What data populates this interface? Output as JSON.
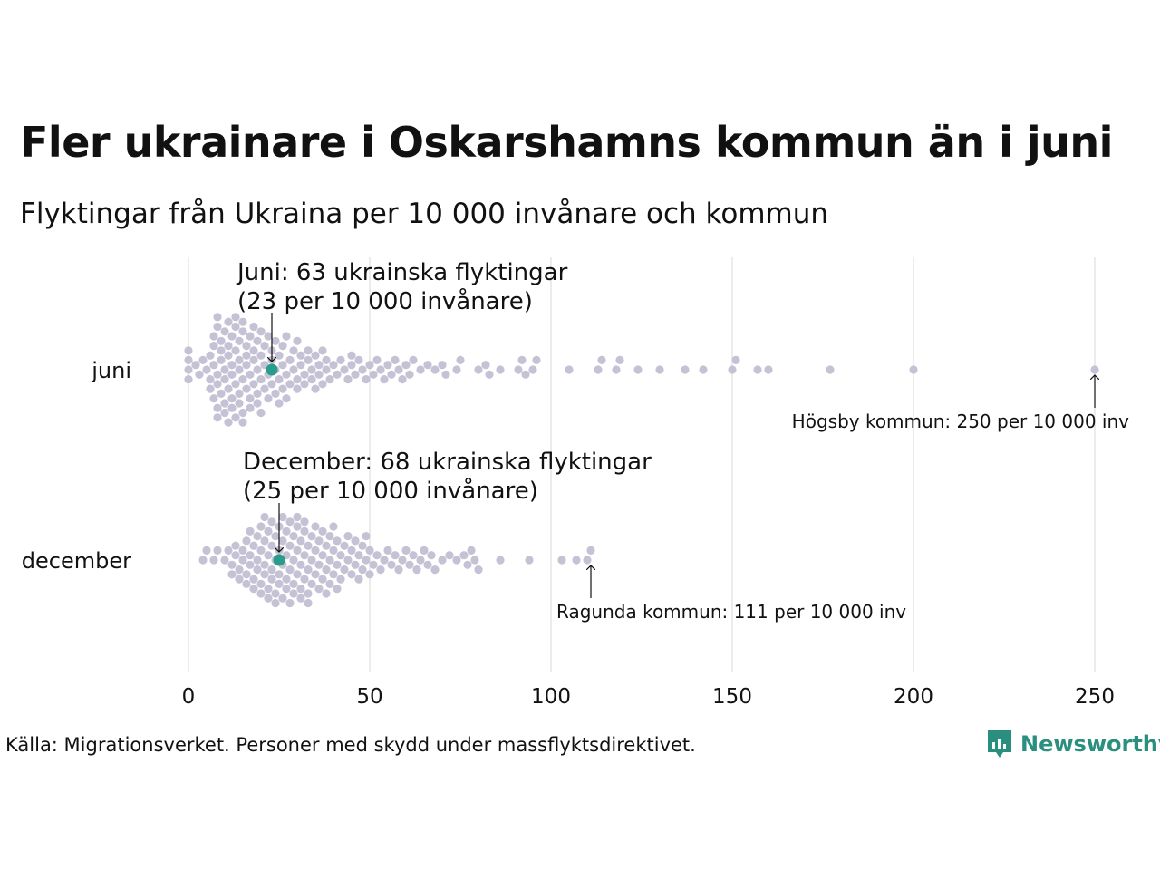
{
  "title": "Fler ukrainare i Oskarshamns kommun än i juni",
  "subtitle": "Flyktingar från Ukraina per 10 000 invånare och kommun",
  "source": "Källa: Migrationsverket. Personer med skydd under massflyktsdirektivet.",
  "brand": "Newsworthy",
  "colors": {
    "dots": "#c4c2d4",
    "highlight": "#2a9d8a",
    "grid": "#d9d9d9",
    "text": "#111111",
    "brand": "#2b8f7f"
  },
  "chart_data": {
    "type": "scatter",
    "style": "beeswarm",
    "xlim": [
      0,
      250
    ],
    "xticks": [
      0,
      50,
      100,
      150,
      200,
      250
    ],
    "grid": true,
    "rows": [
      {
        "label": "juni",
        "median_value": 23,
        "highlight": {
          "value": 23,
          "annotation": [
            "Juni: 63 ukrainska flyktingar",
            "(23 per 10 000 invånare)"
          ]
        },
        "max": {
          "value": 250,
          "annotation": "Högsby kommun: 250 per 10 000 inv"
        },
        "values": [
          0,
          0,
          0,
          0,
          2,
          3,
          4,
          5,
          6,
          6,
          6,
          7,
          7,
          7,
          7,
          8,
          8,
          8,
          8,
          8,
          8,
          9,
          9,
          9,
          9,
          10,
          10,
          10,
          10,
          10,
          11,
          11,
          11,
          11,
          11,
          12,
          12,
          12,
          12,
          12,
          13,
          13,
          13,
          13,
          13,
          14,
          14,
          14,
          14,
          14,
          15,
          15,
          15,
          15,
          15,
          16,
          16,
          16,
          16,
          17,
          17,
          17,
          17,
          18,
          18,
          18,
          18,
          19,
          19,
          19,
          19,
          20,
          20,
          20,
          20,
          21,
          21,
          21,
          22,
          22,
          22,
          23,
          23,
          23,
          24,
          24,
          24,
          25,
          25,
          25,
          26,
          26,
          26,
          27,
          27,
          27,
          28,
          28,
          29,
          29,
          30,
          30,
          30,
          31,
          31,
          32,
          32,
          33,
          33,
          34,
          34,
          35,
          35,
          36,
          36,
          37,
          37,
          38,
          38,
          39,
          40,
          41,
          42,
          43,
          44,
          45,
          45,
          46,
          47,
          48,
          49,
          50,
          51,
          52,
          53,
          54,
          55,
          56,
          57,
          58,
          59,
          60,
          61,
          62,
          64,
          66,
          68,
          70,
          71,
          74,
          75,
          80,
          82,
          83,
          86,
          91,
          92,
          93,
          95,
          96,
          105,
          113,
          114,
          118,
          119,
          124,
          130,
          137,
          142,
          150,
          151,
          157,
          160,
          177,
          200,
          250
        ]
      },
      {
        "label": "december",
        "median_value": 25,
        "highlight": {
          "value": 25,
          "annotation": [
            "December: 68 ukrainska flyktingar",
            "(25 per 10 000 invånare)"
          ]
        },
        "max": {
          "value": 111,
          "annotation": "Ragunda kommun: 111 per 10 000 inv"
        },
        "values": [
          4,
          5,
          7,
          8,
          10,
          11,
          12,
          12,
          13,
          13,
          14,
          14,
          15,
          15,
          16,
          16,
          16,
          17,
          17,
          17,
          18,
          18,
          18,
          19,
          19,
          19,
          20,
          20,
          20,
          20,
          21,
          21,
          21,
          21,
          22,
          22,
          22,
          22,
          23,
          23,
          23,
          23,
          24,
          24,
          24,
          24,
          25,
          25,
          25,
          25,
          26,
          26,
          26,
          26,
          27,
          27,
          27,
          27,
          28,
          28,
          28,
          28,
          29,
          29,
          29,
          29,
          30,
          30,
          30,
          30,
          31,
          31,
          31,
          31,
          32,
          32,
          32,
          32,
          33,
          33,
          33,
          33,
          34,
          34,
          34,
          35,
          35,
          35,
          36,
          36,
          36,
          37,
          37,
          37,
          38,
          38,
          38,
          39,
          39,
          39,
          40,
          40,
          40,
          41,
          41,
          41,
          42,
          42,
          43,
          43,
          44,
          44,
          45,
          45,
          46,
          46,
          47,
          47,
          48,
          48,
          49,
          49,
          50,
          50,
          51,
          52,
          53,
          54,
          55,
          56,
          57,
          58,
          59,
          60,
          61,
          62,
          63,
          64,
          65,
          66,
          67,
          68,
          70,
          72,
          74,
          76,
          77,
          78,
          79,
          80,
          86,
          94,
          103,
          107,
          110,
          111
        ]
      }
    ]
  }
}
